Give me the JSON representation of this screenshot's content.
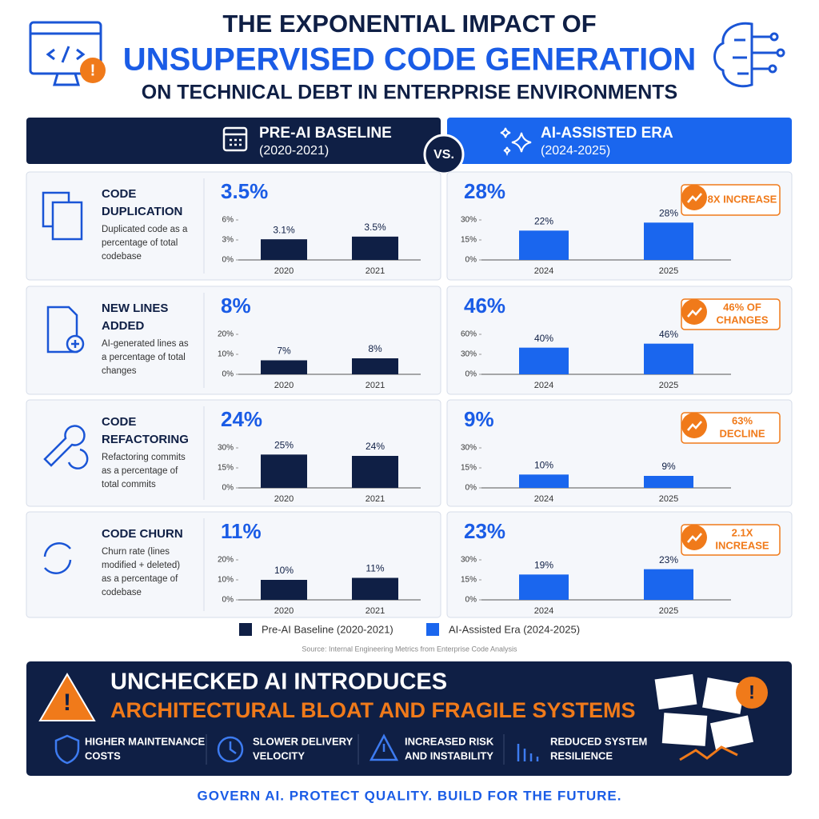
{
  "header": {
    "line1": "THE EXPONENTIAL IMPACT OF",
    "line2": "UNSUPERVISED CODE GENERATION",
    "line3": "ON TECHNICAL DEBT IN ENTERPRISE ENVIRONMENTS"
  },
  "columns": [
    {
      "title": "PRE-AI BASELINE",
      "period": "(2020-2021)"
    },
    {
      "title": "AI-ASSISTED ERA",
      "period": "(2024-2025)"
    }
  ],
  "vs": "VS.",
  "metrics": [
    {
      "name": [
        "CODE",
        "DUPLICATION"
      ],
      "description": [
        "Duplicated code as a",
        "percentage of total",
        "codebase"
      ]
    },
    {
      "name": [
        "NEW LINES",
        "ADDED"
      ],
      "description": [
        "AI-generated lines as",
        "a percentage of total",
        "changes"
      ]
    },
    {
      "name": [
        "CODE",
        "REFACTORING"
      ],
      "description": [
        "Refactoring commits",
        "as a percentage of",
        "total commits"
      ]
    },
    {
      "name": [
        "CODE CHURN"
      ],
      "description": [
        "Churn rate (lines",
        "modified + deleted)",
        "as a percentage of",
        "codebase"
      ]
    }
  ],
  "chart_data": [
    {
      "type": "bar",
      "headline": "3.5%",
      "categories": [
        "2020",
        "2021"
      ],
      "values": [
        3.1,
        3.5
      ],
      "value_labels": [
        "3.1%",
        "3.5%"
      ],
      "color": "#0f1f45",
      "ylim": [
        0,
        6
      ],
      "yticks": [
        {
          "value": 0,
          "label": "0%"
        },
        {
          "value": 3,
          "label": "3%"
        },
        {
          "value": 6,
          "label": "6%"
        }
      ]
    },
    {
      "type": "bar",
      "headline": "28%",
      "categories": [
        "2024",
        "2025"
      ],
      "values": [
        22,
        28
      ],
      "value_labels": [
        "22%",
        "28%"
      ],
      "color": "#1a66ee",
      "ylim": [
        0,
        30
      ],
      "yticks": [
        {
          "value": 0,
          "label": "0%"
        },
        {
          "value": 15,
          "label": "15%"
        },
        {
          "value": 30,
          "label": "30%"
        }
      ],
      "annotation": [
        "8X INCREASE"
      ]
    },
    {
      "type": "bar",
      "headline": "8%",
      "categories": [
        "2020",
        "2021"
      ],
      "values": [
        7,
        8
      ],
      "value_labels": [
        "7%",
        "8%"
      ],
      "color": "#0f1f45",
      "ylim": [
        0,
        20
      ],
      "yticks": [
        {
          "value": 0,
          "label": "0%"
        },
        {
          "value": 10,
          "label": "10%"
        },
        {
          "value": 20,
          "label": "20%"
        }
      ]
    },
    {
      "type": "bar",
      "headline": "46%",
      "categories": [
        "2024",
        "2025"
      ],
      "values": [
        40,
        46
      ],
      "value_labels": [
        "40%",
        "46%"
      ],
      "color": "#1a66ee",
      "ylim": [
        0,
        60
      ],
      "yticks": [
        {
          "value": 0,
          "label": "0%"
        },
        {
          "value": 30,
          "label": "30%"
        },
        {
          "value": 60,
          "label": "60%"
        }
      ],
      "annotation": [
        "46% OF",
        "CHANGES"
      ]
    },
    {
      "type": "bar",
      "headline": "24%",
      "categories": [
        "2020",
        "2021"
      ],
      "values": [
        25,
        24
      ],
      "value_labels": [
        "25%",
        "24%"
      ],
      "color": "#0f1f45",
      "ylim": [
        0,
        30
      ],
      "yticks": [
        {
          "value": 0,
          "label": "0%"
        },
        {
          "value": 15,
          "label": "15%"
        },
        {
          "value": 30,
          "label": "30%"
        }
      ]
    },
    {
      "type": "bar",
      "headline": "9%",
      "categories": [
        "2024",
        "2025"
      ],
      "values": [
        10,
        9
      ],
      "value_labels": [
        "10%",
        "9%"
      ],
      "color": "#1a66ee",
      "ylim": [
        0,
        30
      ],
      "yticks": [
        {
          "value": 0,
          "label": "0%"
        },
        {
          "value": 15,
          "label": "15%"
        },
        {
          "value": 30,
          "label": "30%"
        }
      ],
      "annotation": [
        "63%",
        "DECLINE"
      ]
    },
    {
      "type": "bar",
      "headline": "11%",
      "categories": [
        "2020",
        "2021"
      ],
      "values": [
        10,
        11
      ],
      "value_labels": [
        "10%",
        "11%"
      ],
      "color": "#0f1f45",
      "ylim": [
        0,
        20
      ],
      "yticks": [
        {
          "value": 0,
          "label": "0%"
        },
        {
          "value": 10,
          "label": "10%"
        },
        {
          "value": 20,
          "label": "20%"
        }
      ]
    },
    {
      "type": "bar",
      "headline": "23%",
      "categories": [
        "2024",
        "2025"
      ],
      "values": [
        19,
        23
      ],
      "value_labels": [
        "19%",
        "23%"
      ],
      "color": "#1a66ee",
      "ylim": [
        0,
        30
      ],
      "yticks": [
        {
          "value": 0,
          "label": "0%"
        },
        {
          "value": 15,
          "label": "15%"
        },
        {
          "value": 30,
          "label": "30%"
        }
      ],
      "annotation": [
        "2.1X",
        "INCREASE"
      ]
    }
  ],
  "legend": [
    {
      "name": "Pre-AI Baseline (2020-2021)",
      "color": "#0f1f45"
    },
    {
      "name": "AI-Assisted Era (2024-2025)",
      "color": "#1a66ee"
    }
  ],
  "source": "Source: Internal Engineering Metrics from Enterprise Code Analysis",
  "banner": {
    "title1": "UNCHECKED AI INTRODUCES",
    "title2": "ARCHITECTURAL BLOAT AND FRAGILE SYSTEMS",
    "items": [
      [
        "HIGHER MAINTENANCE",
        "COSTS"
      ],
      [
        "SLOWER DELIVERY",
        "VELOCITY"
      ],
      [
        "INCREASED RISK",
        "AND INSTABILITY"
      ],
      [
        "REDUCED SYSTEM",
        "RESILIENCE"
      ]
    ]
  },
  "footer": "GOVERN AI. PROTECT QUALITY. BUILD FOR THE FUTURE."
}
